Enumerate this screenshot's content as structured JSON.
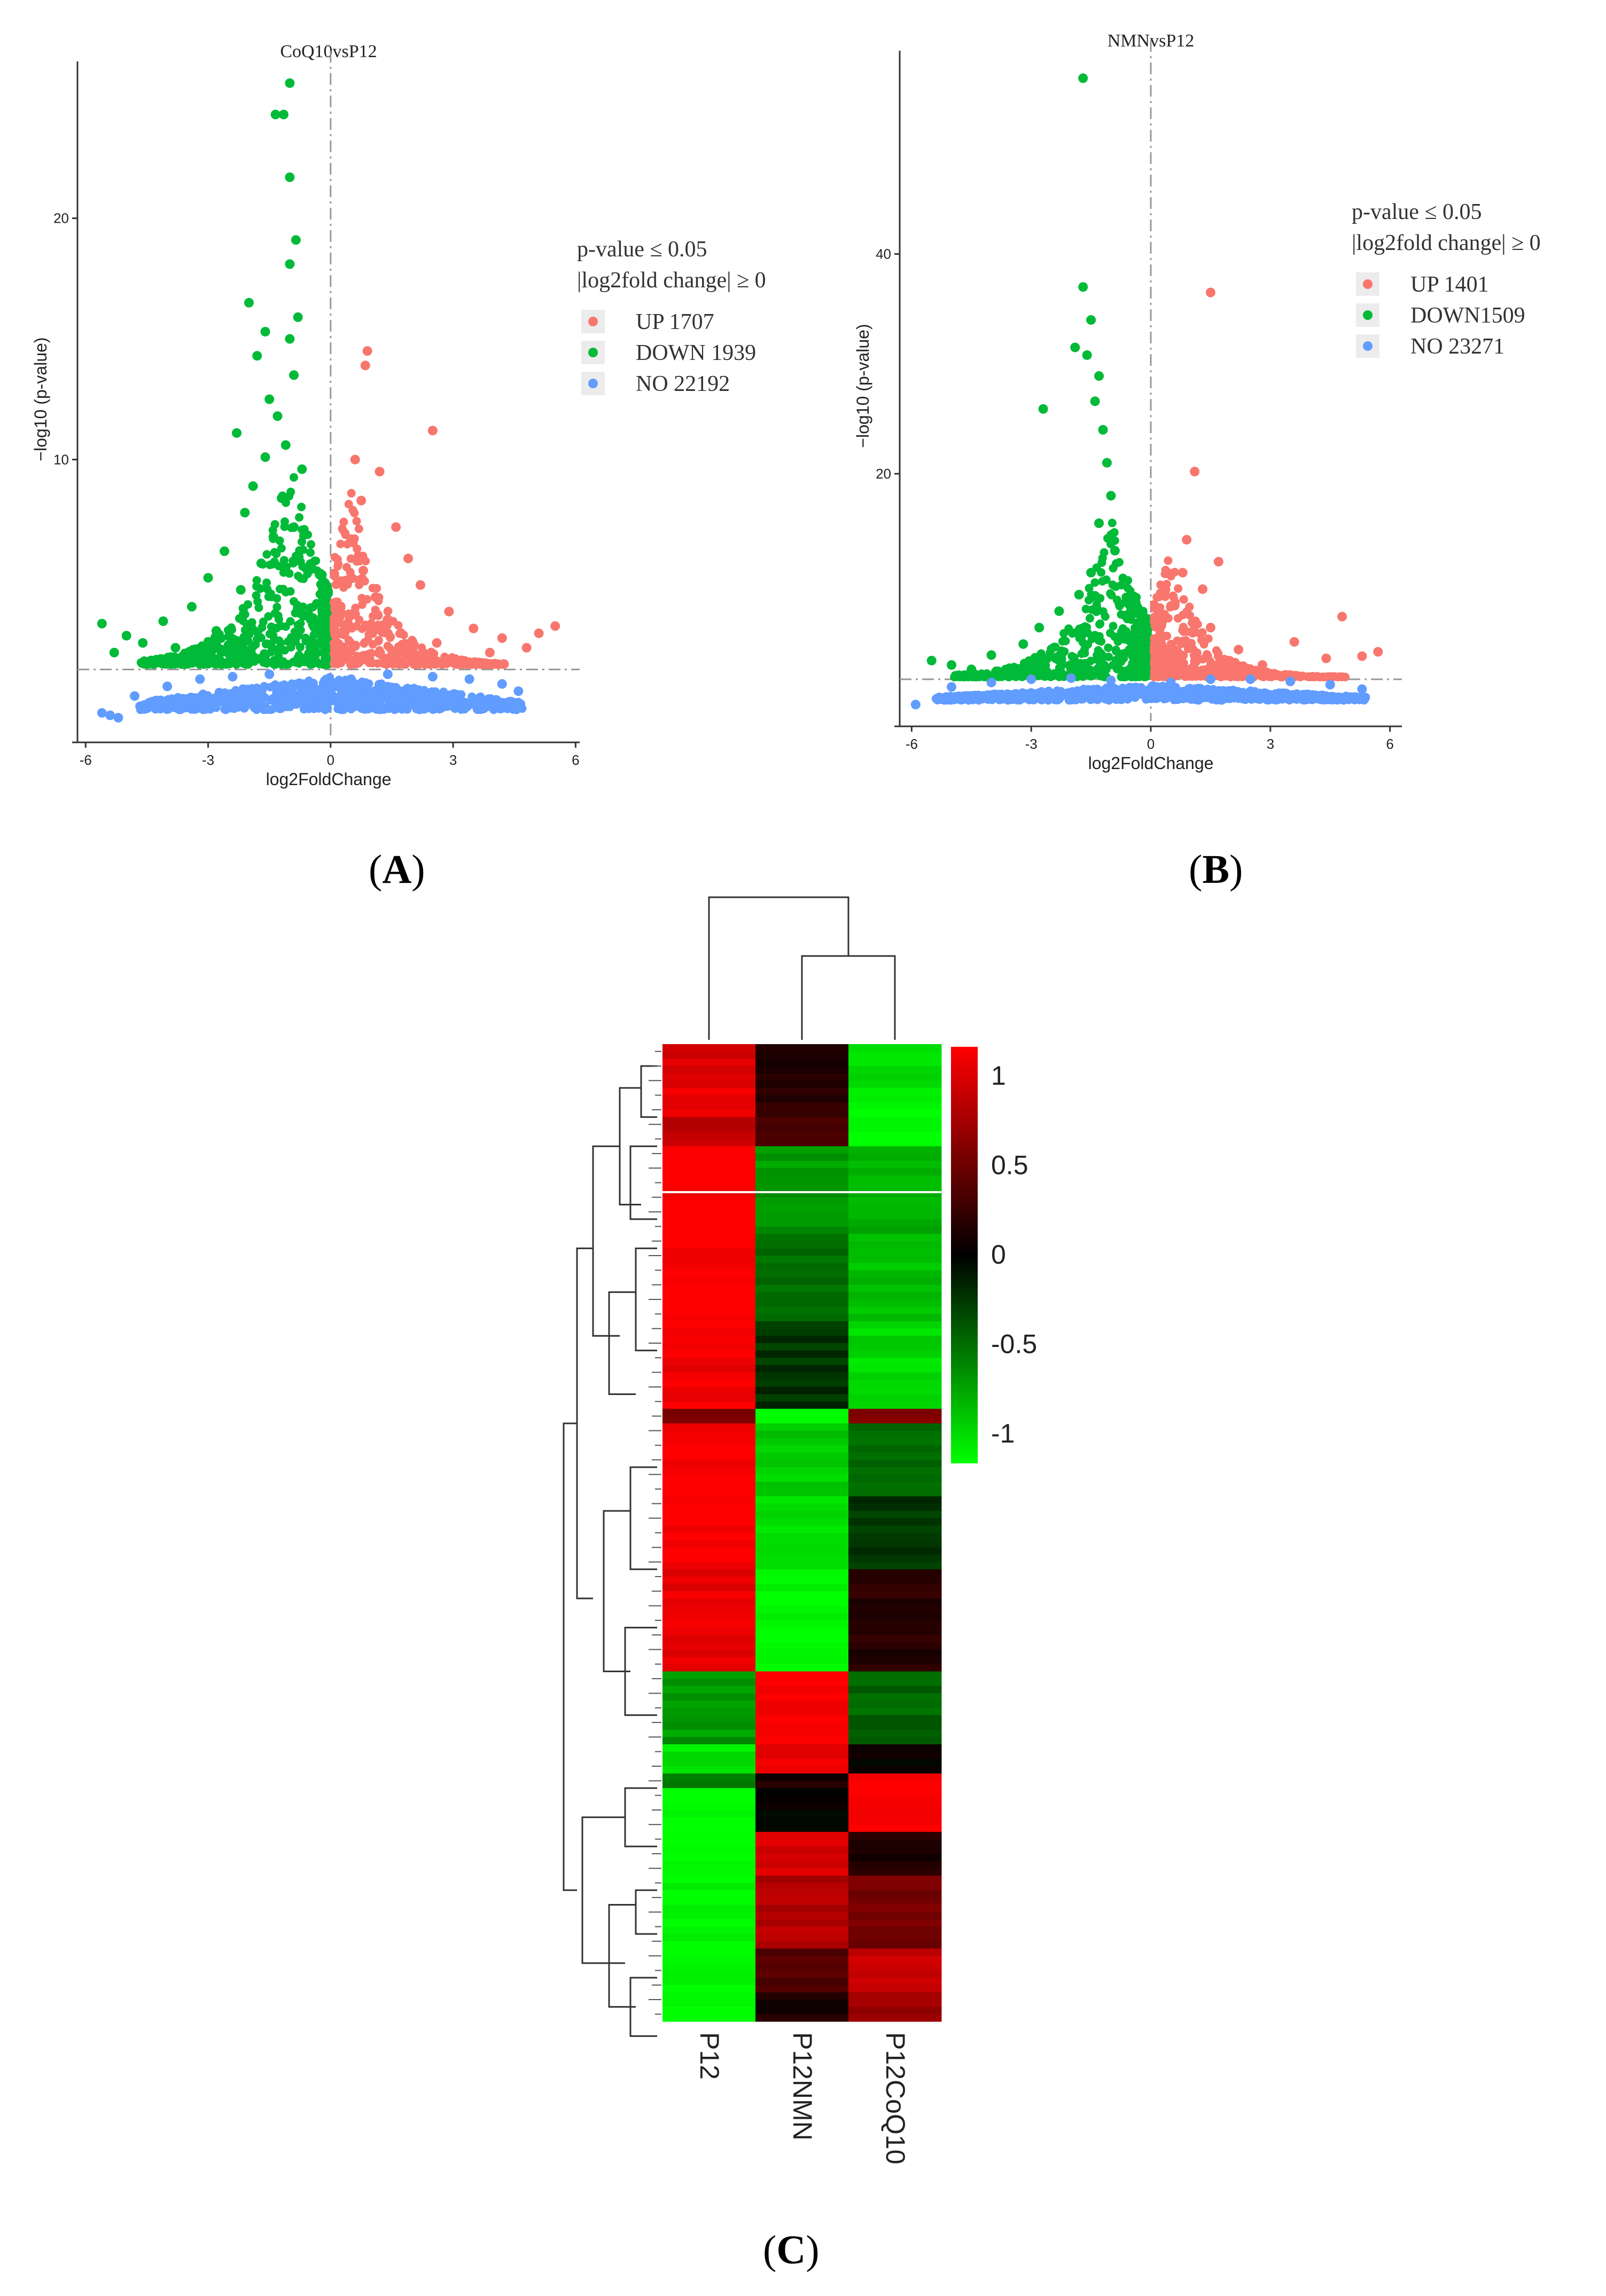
{
  "panels": {
    "a": {
      "letter": "A"
    },
    "b": {
      "letter": "B"
    },
    "c": {
      "letter": "C"
    }
  },
  "chart_data": [
    {
      "type": "scatter",
      "panel": "A",
      "title": "CoQ10vsP12",
      "xlabel": "log2FoldChange",
      "ylabel": "−log10 (p-value)",
      "xlim": [
        -6.2,
        6.1
      ],
      "ylim": [
        -1.5,
        26.5
      ],
      "xticks": [
        -6,
        -3,
        0,
        3,
        6
      ],
      "yticks": [
        10,
        20
      ],
      "legend_title_line1": "p-value ≤  0.05",
      "legend_title_line2": "|log2fold change| ≥ 0",
      "legend": [
        {
          "label": "UP 1707",
          "color": "#f8766d"
        },
        {
          "label": "DOWN 1939",
          "color": "#00ba38"
        },
        {
          "label": "NO 22192",
          "color": "#619cff"
        }
      ],
      "counts": {
        "up": 1707,
        "down": 1939,
        "no": 22192
      },
      "threshold_y": 1.3,
      "threshold_x": 0,
      "series": [
        {
          "name": "DOWN",
          "color": "#00ba38",
          "points": [
            [
              -1.0,
              25.6
            ],
            [
              -1.35,
              24.3
            ],
            [
              -1.15,
              24.3
            ],
            [
              -1.0,
              21.7
            ],
            [
              -0.85,
              19.1
            ],
            [
              -1.0,
              18.1
            ],
            [
              -2.0,
              16.5
            ],
            [
              -0.8,
              15.9
            ],
            [
              -1.6,
              15.3
            ],
            [
              -1.0,
              15.0
            ],
            [
              -1.8,
              14.3
            ],
            [
              -0.9,
              13.5
            ],
            [
              -1.5,
              12.5
            ],
            [
              -1.3,
              11.8
            ],
            [
              -2.3,
              11.1
            ],
            [
              -1.1,
              10.6
            ],
            [
              -1.6,
              10.1
            ],
            [
              -0.7,
              9.6
            ],
            [
              -1.9,
              8.9
            ],
            [
              -1.2,
              8.4
            ],
            [
              -2.1,
              7.8
            ],
            [
              -0.9,
              7.2
            ],
            [
              -1.4,
              6.8
            ],
            [
              -2.6,
              6.2
            ],
            [
              -1.7,
              5.7
            ],
            [
              -3.0,
              5.1
            ],
            [
              -2.2,
              4.6
            ],
            [
              -3.4,
              3.9
            ],
            [
              -4.1,
              3.3
            ],
            [
              -5.6,
              3.2
            ],
            [
              -5.0,
              2.7
            ],
            [
              -4.6,
              2.4
            ],
            [
              -3.8,
              2.2
            ],
            [
              -5.3,
              2.0
            ],
            [
              -2.8,
              2.9
            ]
          ]
        },
        {
          "name": "UP",
          "color": "#f8766d",
          "points": [
            [
              0.9,
              14.5
            ],
            [
              0.85,
              13.9
            ],
            [
              2.5,
              11.2
            ],
            [
              0.6,
              10.0
            ],
            [
              1.2,
              9.5
            ],
            [
              0.75,
              8.3
            ],
            [
              1.6,
              7.2
            ],
            [
              0.5,
              6.7
            ],
            [
              1.9,
              5.9
            ],
            [
              0.8,
              5.4
            ],
            [
              2.2,
              4.8
            ],
            [
              1.1,
              4.3
            ],
            [
              2.9,
              3.7
            ],
            [
              0.6,
              3.6
            ],
            [
              3.5,
              3.0
            ],
            [
              4.2,
              2.6
            ],
            [
              5.1,
              2.8
            ],
            [
              5.5,
              3.1
            ],
            [
              4.8,
              2.2
            ],
            [
              3.9,
              2.0
            ],
            [
              2.6,
              2.4
            ],
            [
              1.4,
              2.8
            ]
          ]
        },
        {
          "name": "NO",
          "color": "#619cff",
          "points": [
            [
              -5.6,
              -0.5
            ],
            [
              -5.4,
              -0.6
            ],
            [
              -5.2,
              -0.7
            ],
            [
              -4.8,
              0.2
            ],
            [
              -4.0,
              0.6
            ],
            [
              -3.2,
              0.9
            ],
            [
              -2.4,
              1.0
            ],
            [
              -1.5,
              1.1
            ],
            [
              -0.6,
              0.7
            ],
            [
              0.5,
              0.9
            ],
            [
              1.4,
              1.1
            ],
            [
              2.5,
              1.0
            ],
            [
              3.4,
              0.9
            ],
            [
              4.2,
              0.7
            ],
            [
              4.6,
              0.4
            ]
          ]
        }
      ]
    },
    {
      "type": "scatter",
      "panel": "B",
      "title": "NMNvsP12",
      "xlabel": "log2FoldChange",
      "ylabel": "−log10 (p-value)",
      "xlim": [
        -6.3,
        6.3
      ],
      "ylim": [
        -2.5,
        58.5
      ],
      "xticks": [
        -6,
        -3,
        0,
        3,
        6
      ],
      "yticks": [
        20,
        40
      ],
      "legend_title_line1": "p-value ≤  0.05",
      "legend_title_line2": "|log2fold change| ≥ 0",
      "legend": [
        {
          "label": "UP 1401",
          "color": "#f8766d"
        },
        {
          "label": "DOWN1509",
          "color": "#00ba38"
        },
        {
          "label": "NO 23271",
          "color": "#619cff"
        }
      ],
      "counts": {
        "up": 1401,
        "down": 1509,
        "no": 23271
      },
      "threshold_y": 1.3,
      "threshold_x": 0,
      "series": [
        {
          "name": "DOWN",
          "color": "#00ba38",
          "points": [
            [
              -1.7,
              56.0
            ],
            [
              -1.7,
              37.0
            ],
            [
              -1.5,
              34.0
            ],
            [
              -1.9,
              31.5
            ],
            [
              -1.6,
              30.8
            ],
            [
              -1.3,
              28.9
            ],
            [
              -2.7,
              25.9
            ],
            [
              -1.4,
              26.6
            ],
            [
              -1.2,
              24.0
            ],
            [
              -1.1,
              21.0
            ],
            [
              -1.0,
              18.0
            ],
            [
              -1.3,
              15.5
            ],
            [
              -0.9,
              13.0
            ],
            [
              -1.5,
              11.0
            ],
            [
              -1.8,
              9.0
            ],
            [
              -2.3,
              7.5
            ],
            [
              -2.8,
              6.0
            ],
            [
              -3.2,
              4.5
            ],
            [
              -4.0,
              3.5
            ],
            [
              -5.5,
              3.0
            ],
            [
              -5.0,
              2.6
            ],
            [
              -4.5,
              2.2
            ]
          ]
        },
        {
          "name": "UP",
          "color": "#f8766d",
          "points": [
            [
              1.5,
              36.5
            ],
            [
              1.1,
              20.2
            ],
            [
              0.9,
              14.0
            ],
            [
              1.7,
              12.0
            ],
            [
              0.8,
              11.0
            ],
            [
              1.3,
              9.5
            ],
            [
              0.6,
              8.0
            ],
            [
              4.8,
              7.0
            ],
            [
              1.5,
              6.0
            ],
            [
              3.6,
              4.7
            ],
            [
              2.2,
              4.0
            ],
            [
              4.4,
              3.2
            ],
            [
              5.3,
              3.4
            ],
            [
              5.7,
              3.8
            ],
            [
              2.8,
              2.6
            ]
          ]
        },
        {
          "name": "NO",
          "color": "#619cff",
          "points": [
            [
              -5.9,
              -1.0
            ],
            [
              -5.0,
              0.6
            ],
            [
              -4.0,
              1.0
            ],
            [
              -3.0,
              1.3
            ],
            [
              -2.0,
              1.4
            ],
            [
              -1.0,
              1.2
            ],
            [
              0.5,
              1.0
            ],
            [
              1.5,
              1.3
            ],
            [
              2.5,
              1.3
            ],
            [
              3.5,
              1.1
            ],
            [
              4.5,
              0.8
            ],
            [
              5.3,
              0.4
            ]
          ]
        }
      ]
    },
    {
      "type": "heatmap",
      "panel": "C",
      "columns": [
        "P12",
        "P12NMN",
        "P12CoQ10"
      ],
      "color_scale": {
        "min": -1,
        "max": 1,
        "ticks": [
          "1",
          "0.5",
          "0",
          "-0.5",
          "-1"
        ],
        "low": "#00ff00",
        "mid": "#000000",
        "high": "#ff0000"
      },
      "row_blocks": [
        {
          "rows": 6,
          "values": [
            0.85,
            0.1,
            -0.85
          ]
        },
        {
          "rows": 4,
          "values": [
            0.9,
            0.2,
            -0.95
          ]
        },
        {
          "rows": 4,
          "values": [
            0.75,
            0.3,
            -1.0
          ]
        },
        {
          "rows": 12,
          "values": [
            1.0,
            -0.6,
            -0.7
          ]
        },
        {
          "rows": 12,
          "values": [
            1.0,
            -0.45,
            -0.75
          ]
        },
        {
          "rows": 12,
          "values": [
            0.95,
            -0.2,
            -0.85
          ]
        },
        {
          "rows": 2,
          "values": [
            0.45,
            -1.0,
            0.5
          ]
        },
        {
          "rows": 10,
          "values": [
            1.0,
            -0.8,
            -0.4
          ]
        },
        {
          "rows": 10,
          "values": [
            1.0,
            -0.9,
            -0.2
          ]
        },
        {
          "rows": 14,
          "values": [
            0.9,
            -1.0,
            0.15
          ]
        },
        {
          "rows": 10,
          "values": [
            -0.6,
            1.0,
            -0.4
          ]
        },
        {
          "rows": 4,
          "values": [
            -0.9,
            0.9,
            0.0
          ]
        },
        {
          "rows": 2,
          "values": [
            -0.5,
            0.1,
            1.0
          ]
        },
        {
          "rows": 6,
          "values": [
            -1.0,
            0.0,
            1.0
          ]
        },
        {
          "rows": 6,
          "values": [
            -1.0,
            0.85,
            0.1
          ]
        },
        {
          "rows": 10,
          "values": [
            -1.0,
            0.7,
            0.45
          ]
        },
        {
          "rows": 6,
          "values": [
            -1.0,
            0.3,
            0.8
          ]
        },
        {
          "rows": 4,
          "values": [
            -1.0,
            0.1,
            0.6
          ]
        }
      ]
    }
  ]
}
